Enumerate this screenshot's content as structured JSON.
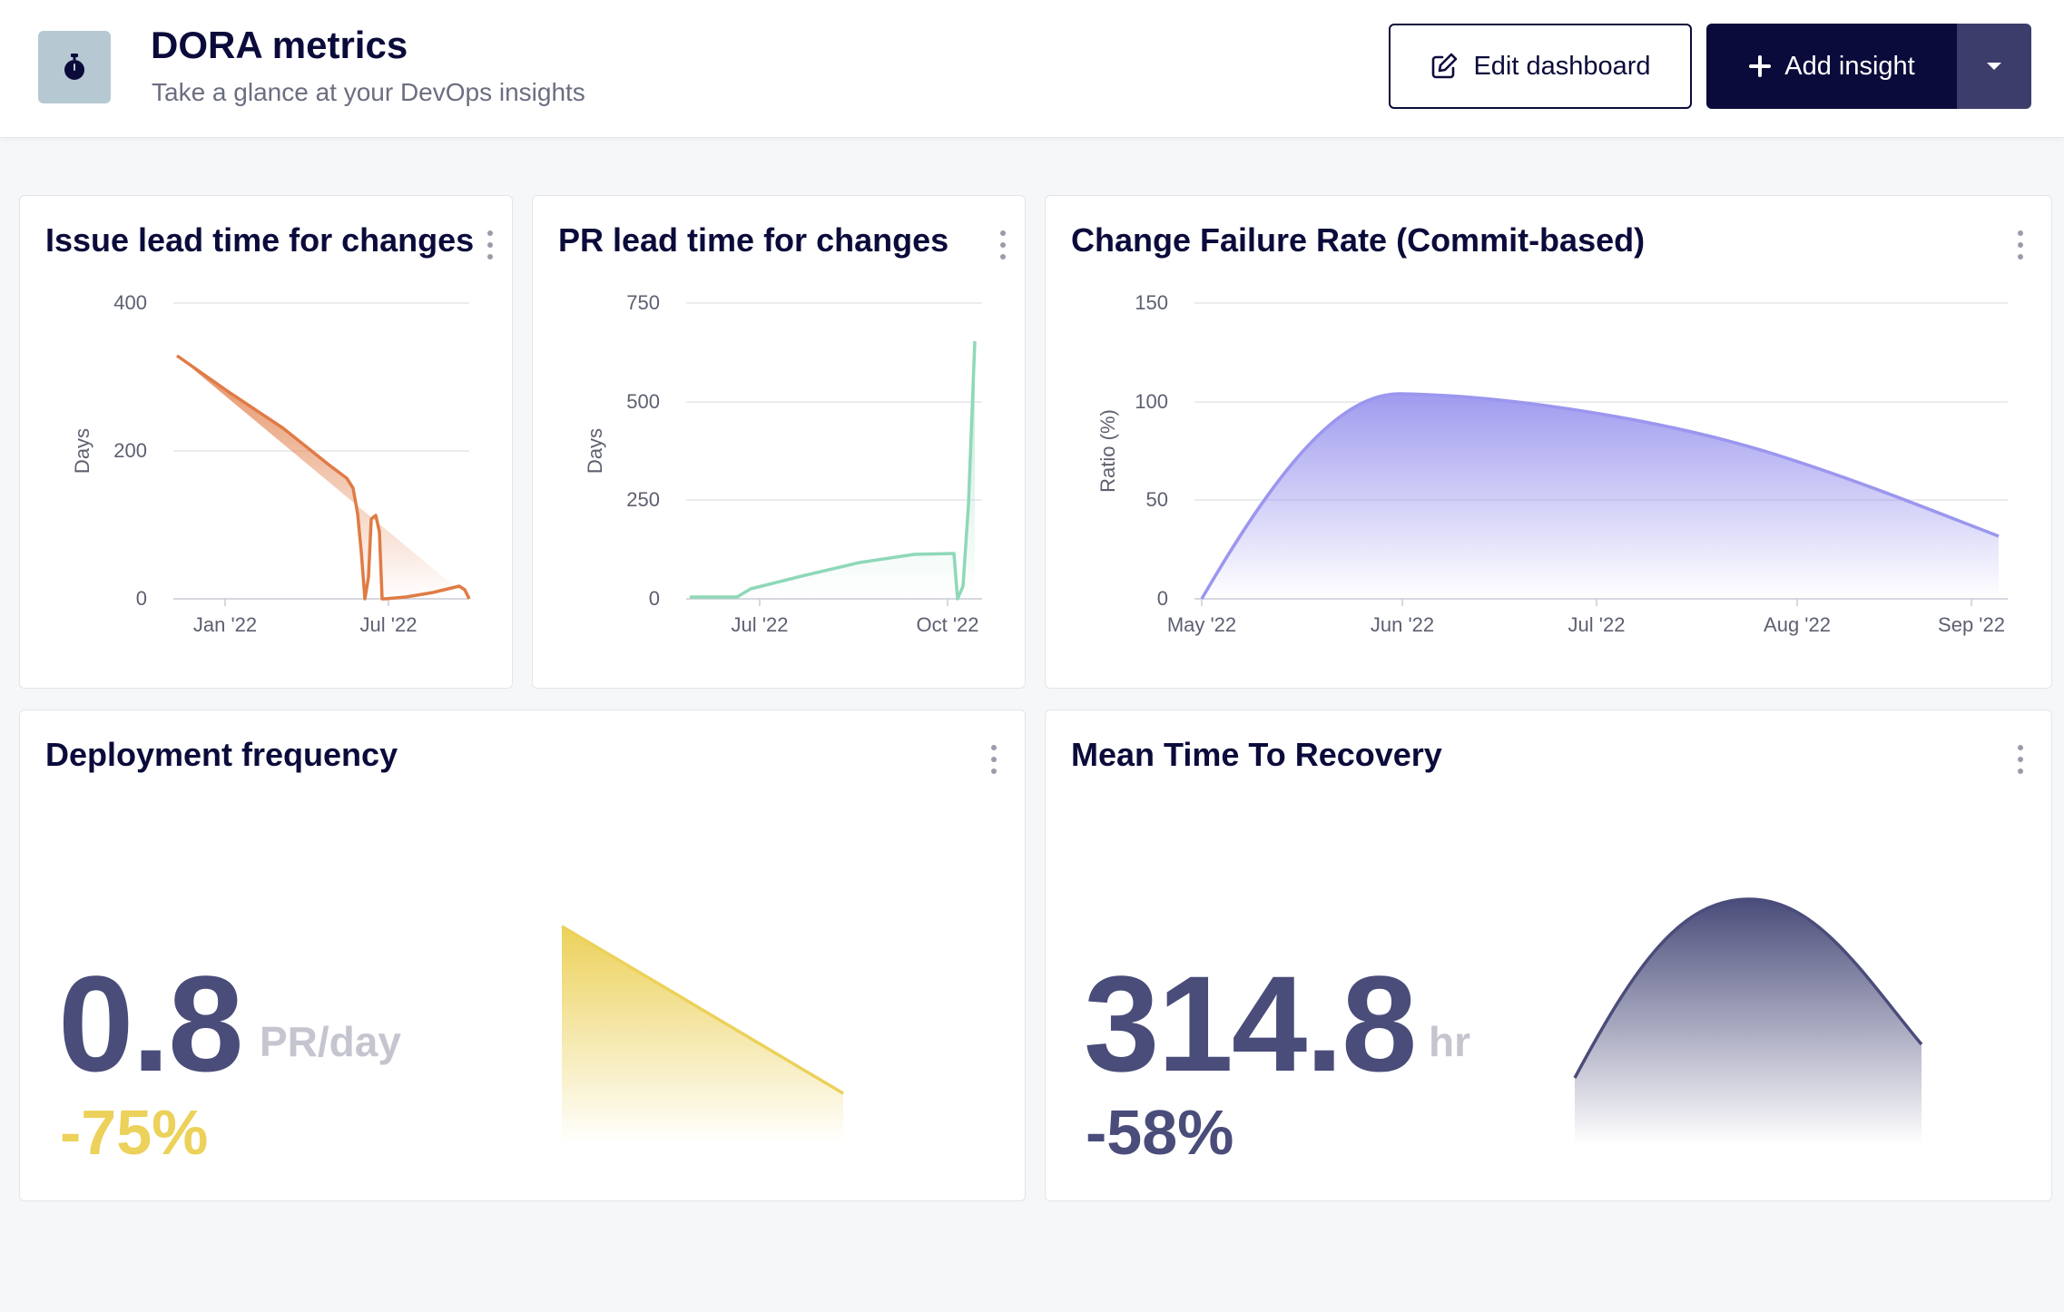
{
  "header": {
    "title": "DORA metrics",
    "subtitle": "Take a glance at your DevOps insights",
    "logo_icon": "stopwatch-icon",
    "edit_label": "Edit dashboard",
    "add_label": "Add insight"
  },
  "cards": {
    "issue_lead": {
      "title": "Issue lead time for changes",
      "ylabel": "Days",
      "yticks": [
        "400",
        "200",
        "0"
      ],
      "xticks": [
        "Jan '22",
        "Jul '22"
      ],
      "color": "#e07b45"
    },
    "pr_lead": {
      "title": "PR lead time for changes",
      "ylabel": "Days",
      "yticks": [
        "750",
        "500",
        "250",
        "0"
      ],
      "xticks": [
        "Jul '22",
        "Oct '22"
      ],
      "color": "#8ed8b8"
    },
    "cfr": {
      "title": "Change Failure Rate (Commit-based)",
      "ylabel": "Ratio (%)",
      "yticks": [
        "150",
        "100",
        "50",
        "0"
      ],
      "xticks": [
        "May '22",
        "Jun '22",
        "Jul '22",
        "Aug '22",
        "Sep '22"
      ],
      "color": "#9b96ee"
    },
    "deploy": {
      "title": "Deployment frequency",
      "value": "0.8",
      "unit": "PR/day",
      "delta": "-75%",
      "color": "#ecd15a"
    },
    "mttr": {
      "title": "Mean Time To Recovery",
      "value": "314.8",
      "unit": "hr",
      "delta": "-58%",
      "color": "#4a4c7a"
    }
  },
  "chart_data": [
    {
      "type": "area",
      "title": "Issue lead time for changes",
      "ylabel": "Days",
      "ylim": [
        0,
        400
      ],
      "x": [
        "Nov '21",
        "Dec '21",
        "Jan '22",
        "Feb '22",
        "Mar '22",
        "Apr '22",
        "May '22",
        "Jun '22",
        "Jun '22",
        "Jul '22",
        "Jul '22",
        "Jul '22",
        "Aug '22",
        "Sep '22",
        "Oct '22",
        "Oct '22"
      ],
      "values": [
        330,
        295,
        262,
        228,
        195,
        165,
        140,
        120,
        5,
        115,
        5,
        0,
        10,
        20,
        18,
        0
      ]
    },
    {
      "type": "area",
      "title": "PR lead time for changes",
      "ylabel": "Days",
      "ylim": [
        0,
        750
      ],
      "x": [
        "Jun '22",
        "Jun '22",
        "Jul '22",
        "Aug '22",
        "Sep '22",
        "Oct '22",
        "Oct '22",
        "Oct '22"
      ],
      "values": [
        3,
        3,
        25,
        55,
        95,
        115,
        5,
        635
      ]
    },
    {
      "type": "area",
      "title": "Change Failure Rate (Commit-based)",
      "ylabel": "Ratio (%)",
      "ylim": [
        0,
        150
      ],
      "x": [
        "May '22",
        "Jun '22",
        "Jul '22",
        "Aug '22",
        "Sep '22"
      ],
      "values": [
        0,
        105,
        92,
        66,
        32
      ]
    },
    {
      "type": "area",
      "title": "Deployment frequency",
      "values": [
        100,
        16
      ]
    },
    {
      "type": "area",
      "title": "Mean Time To Recovery",
      "values": [
        30,
        92,
        36
      ]
    }
  ]
}
